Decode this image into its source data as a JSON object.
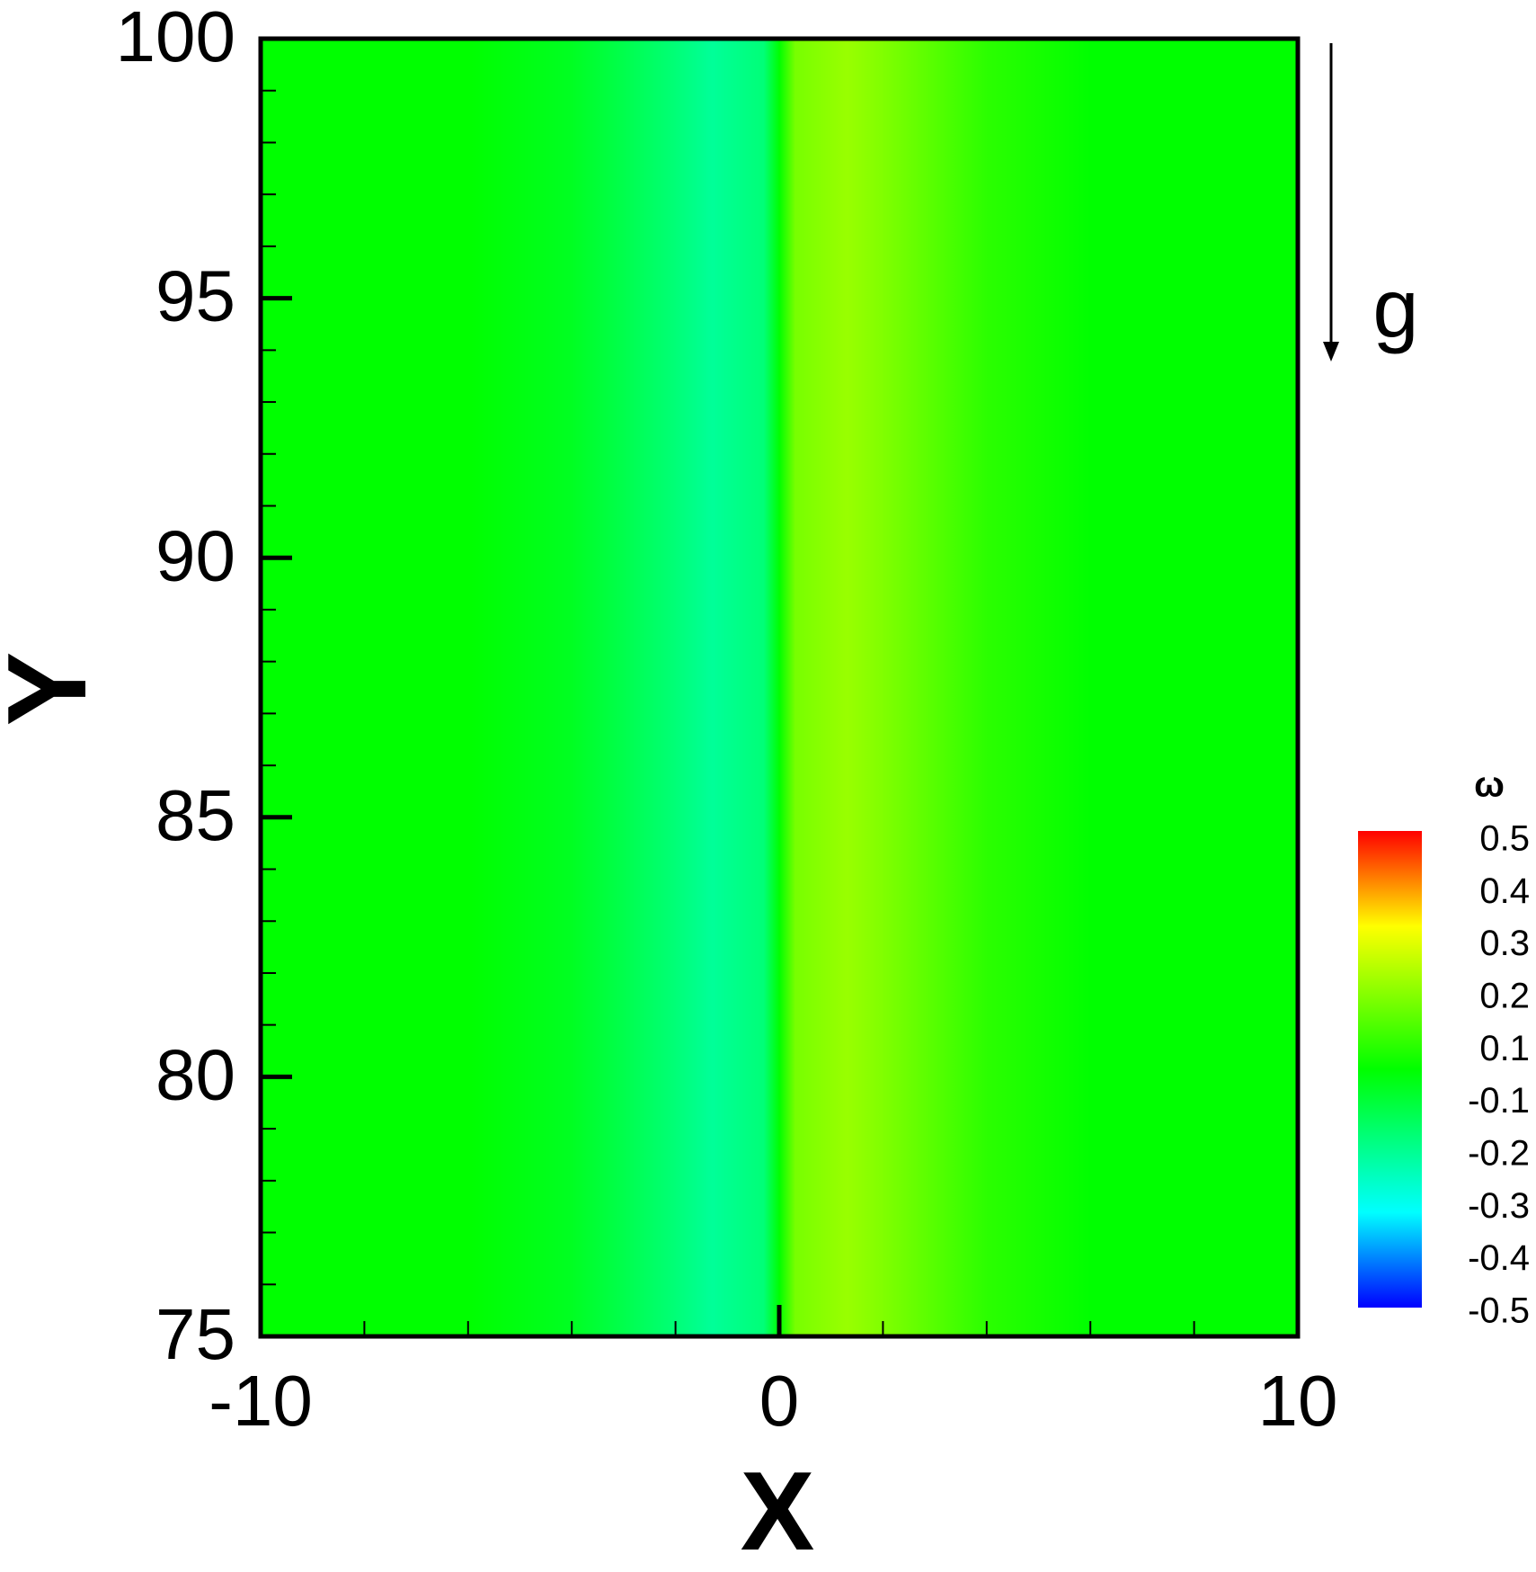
{
  "chart_data": {
    "type": "contour",
    "x_label": "X",
    "y_label": "Y",
    "x": [
      -10,
      -6,
      -4,
      -2,
      -1.3,
      -0.3,
      0,
      0.3,
      1.3,
      2,
      4,
      6,
      10
    ],
    "values": [
      0,
      0,
      -0.04,
      -0.14,
      -0.18,
      -0.14,
      0,
      0.14,
      0.18,
      0.15,
      0.05,
      0,
      0
    ],
    "xlim": [
      -10,
      10
    ],
    "xticks": [
      -10,
      0,
      10
    ],
    "x_minor_step": 2,
    "ylim": [
      75,
      100
    ],
    "yticks": [
      75,
      80,
      85,
      90,
      95,
      100
    ],
    "y_minor_step": 1,
    "colorscale": [
      [
        -0.5,
        "#0000ff"
      ],
      [
        -0.3,
        "#00ffff"
      ],
      [
        0,
        "#00ff00"
      ],
      [
        0.3,
        "#ffff00"
      ],
      [
        0.5,
        "#ff0000"
      ]
    ],
    "colorbar": {
      "title": "ω",
      "clim": [
        -0.5,
        0.5
      ],
      "levels": [
        0.5,
        0.4,
        0.3,
        0.2,
        0.1,
        -0.1,
        -0.2,
        -0.3,
        -0.4,
        -0.5
      ]
    },
    "annotation": "g"
  }
}
